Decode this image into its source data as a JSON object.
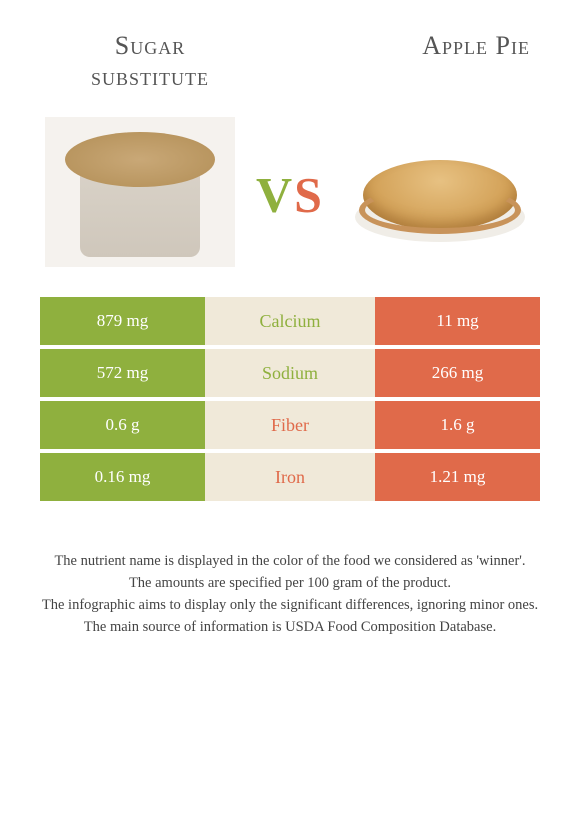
{
  "colors": {
    "green": "#8fb03e",
    "orange": "#e06a4a",
    "mid_bg": "#f0e9d9",
    "mid_text_green": "#8fb03e",
    "mid_text_orange": "#e06a4a"
  },
  "left_food": {
    "title": "Sugar\nsubstitute"
  },
  "right_food": {
    "title": "Apple Pie"
  },
  "vs": {
    "v": "V",
    "s": "S"
  },
  "rows": [
    {
      "name": "Calcium",
      "left": "879 mg",
      "right": "11 mg",
      "winner": "left"
    },
    {
      "name": "Sodium",
      "left": "572 mg",
      "right": "266 mg",
      "winner": "left"
    },
    {
      "name": "Fiber",
      "left": "0.6 g",
      "right": "1.6 g",
      "winner": "right"
    },
    {
      "name": "Iron",
      "left": "0.16 mg",
      "right": "1.21 mg",
      "winner": "right"
    }
  ],
  "footer": {
    "l1": "The nutrient name is displayed in the color of the food we considered as 'winner'.",
    "l2": "The amounts are specified per 100 gram of the product.",
    "l3": "The infographic aims to display only the significant differences, ignoring minor ones.",
    "l4": "The main source of information is USDA Food Composition Database."
  }
}
